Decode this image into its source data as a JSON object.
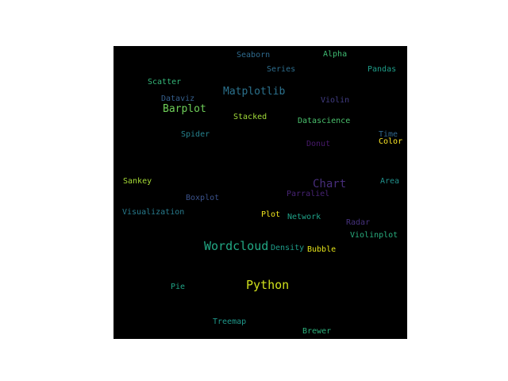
{
  "wordcloud": {
    "background": "#000000",
    "words": [
      {
        "text": "Seaborn",
        "color": "#2f6b8e"
      },
      {
        "text": "Alpha",
        "color": "#3fbc73"
      },
      {
        "text": "Series",
        "color": "#2e6e8e"
      },
      {
        "text": "Pandas",
        "color": "#1f9e89"
      },
      {
        "text": "Scatter",
        "color": "#35b779"
      },
      {
        "text": "Matplotlib",
        "color": "#2c728e"
      },
      {
        "text": "Dataviz",
        "color": "#355f8d"
      },
      {
        "text": "Violin",
        "color": "#433e85"
      },
      {
        "text": "Barplot",
        "color": "#6ece58"
      },
      {
        "text": "Stacked",
        "color": "#a0da39"
      },
      {
        "text": "Datascience",
        "color": "#4ac16d"
      },
      {
        "text": "Spider",
        "color": "#26828e"
      },
      {
        "text": "Time",
        "color": "#31688e"
      },
      {
        "text": "Donut",
        "color": "#481a6c"
      },
      {
        "text": "Color",
        "color": "#fde725"
      },
      {
        "text": "Chart",
        "color": "#472d7b"
      },
      {
        "text": "Sankey",
        "color": "#a5db36"
      },
      {
        "text": "Area",
        "color": "#21918c"
      },
      {
        "text": "Parraliel",
        "color": "#482475"
      },
      {
        "text": "Boxplot",
        "color": "#3b528b"
      },
      {
        "text": "Visualization",
        "color": "#287c8e"
      },
      {
        "text": "Plot",
        "color": "#f1e51d"
      },
      {
        "text": "Network",
        "color": "#1fa187"
      },
      {
        "text": "Radar",
        "color": "#46327e"
      },
      {
        "text": "Violinplot",
        "color": "#29af7f"
      },
      {
        "text": "Wordcloud",
        "color": "#22a884"
      },
      {
        "text": "Density",
        "color": "#1e9c89"
      },
      {
        "text": "Bubble",
        "color": "#e5e419"
      },
      {
        "text": "Python",
        "color": "#d0e11c"
      },
      {
        "text": "Pie",
        "color": "#20a386"
      },
      {
        "text": "Treemap",
        "color": "#1f988b"
      },
      {
        "text": "Brewer",
        "color": "#2db27d"
      }
    ]
  }
}
